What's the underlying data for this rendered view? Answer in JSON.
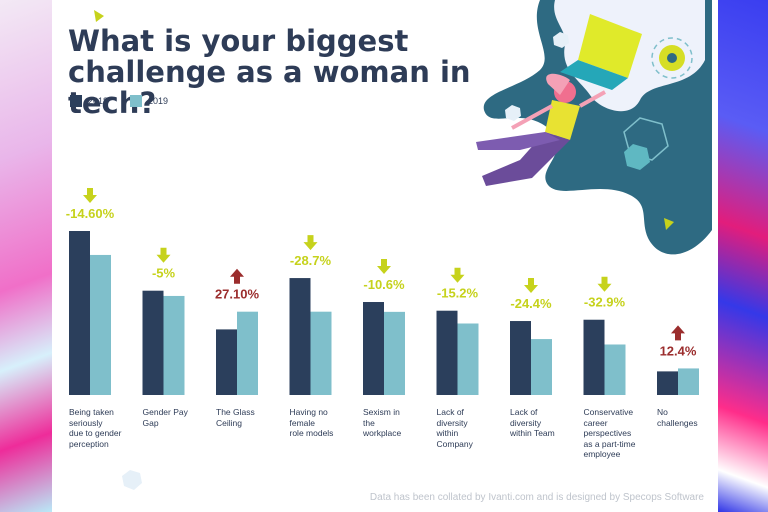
{
  "title": "What is your biggest challenge as a woman in tech?",
  "footer": "Data has been collated by Ivanti.com and is designed by Specops Software",
  "colors": {
    "y2018": "#2b3f5c",
    "y2019": "#7fbfcb",
    "up": "#9b2d2d",
    "down": "#c6d21c",
    "title": "#2e3c57"
  },
  "chart_data": {
    "type": "bar",
    "title": "What is your biggest challenge as a woman in tech?",
    "categories": [
      "Being taken seriously due to gender perception",
      "Gender Pay Gap",
      "The Glass Ceiling",
      "Having no female role models",
      "Sexism in the workplace",
      "Lack of diversity within Company",
      "Lack of diversity within Team",
      "Conservative career perspectives as a part-time employee",
      "No challenges"
    ],
    "display_labels": [
      "Being taken\nseriously\ndue to gender\nperception",
      "Gender Pay\nGap",
      "The Glass\nCeiling",
      "Having no\nfemale\nrole models",
      "Sexism in\nthe\nworkplace",
      "Lack of\ndiversity\nwithin\nCompany",
      "Lack of\ndiversity\nwithin Team",
      "Conservative\ncareer\nperspectives\nas a part-time\nemployee",
      "No\nchallenges"
    ],
    "series": [
      {
        "name": "2018",
        "values": [
          100,
          63.6,
          40,
          71.3,
          56.7,
          51.4,
          45.1,
          45.9,
          14.4
        ]
      },
      {
        "name": "2019",
        "values": [
          85.4,
          60.4,
          50.8,
          50.8,
          50.7,
          43.6,
          34.1,
          30.8,
          16.2
        ]
      }
    ],
    "changes": [
      "-14.60%",
      "-5%",
      "27.10%",
      "-28.7%",
      "-10.6%",
      "-15.2%",
      "-24.4%",
      "-32.9%",
      "12.4%"
    ],
    "directions": [
      "down",
      "down",
      "up",
      "down",
      "down",
      "down",
      "down",
      "down",
      "up"
    ],
    "legend": "top-left",
    "ylim": [
      0,
      100
    ],
    "grid": false
  }
}
